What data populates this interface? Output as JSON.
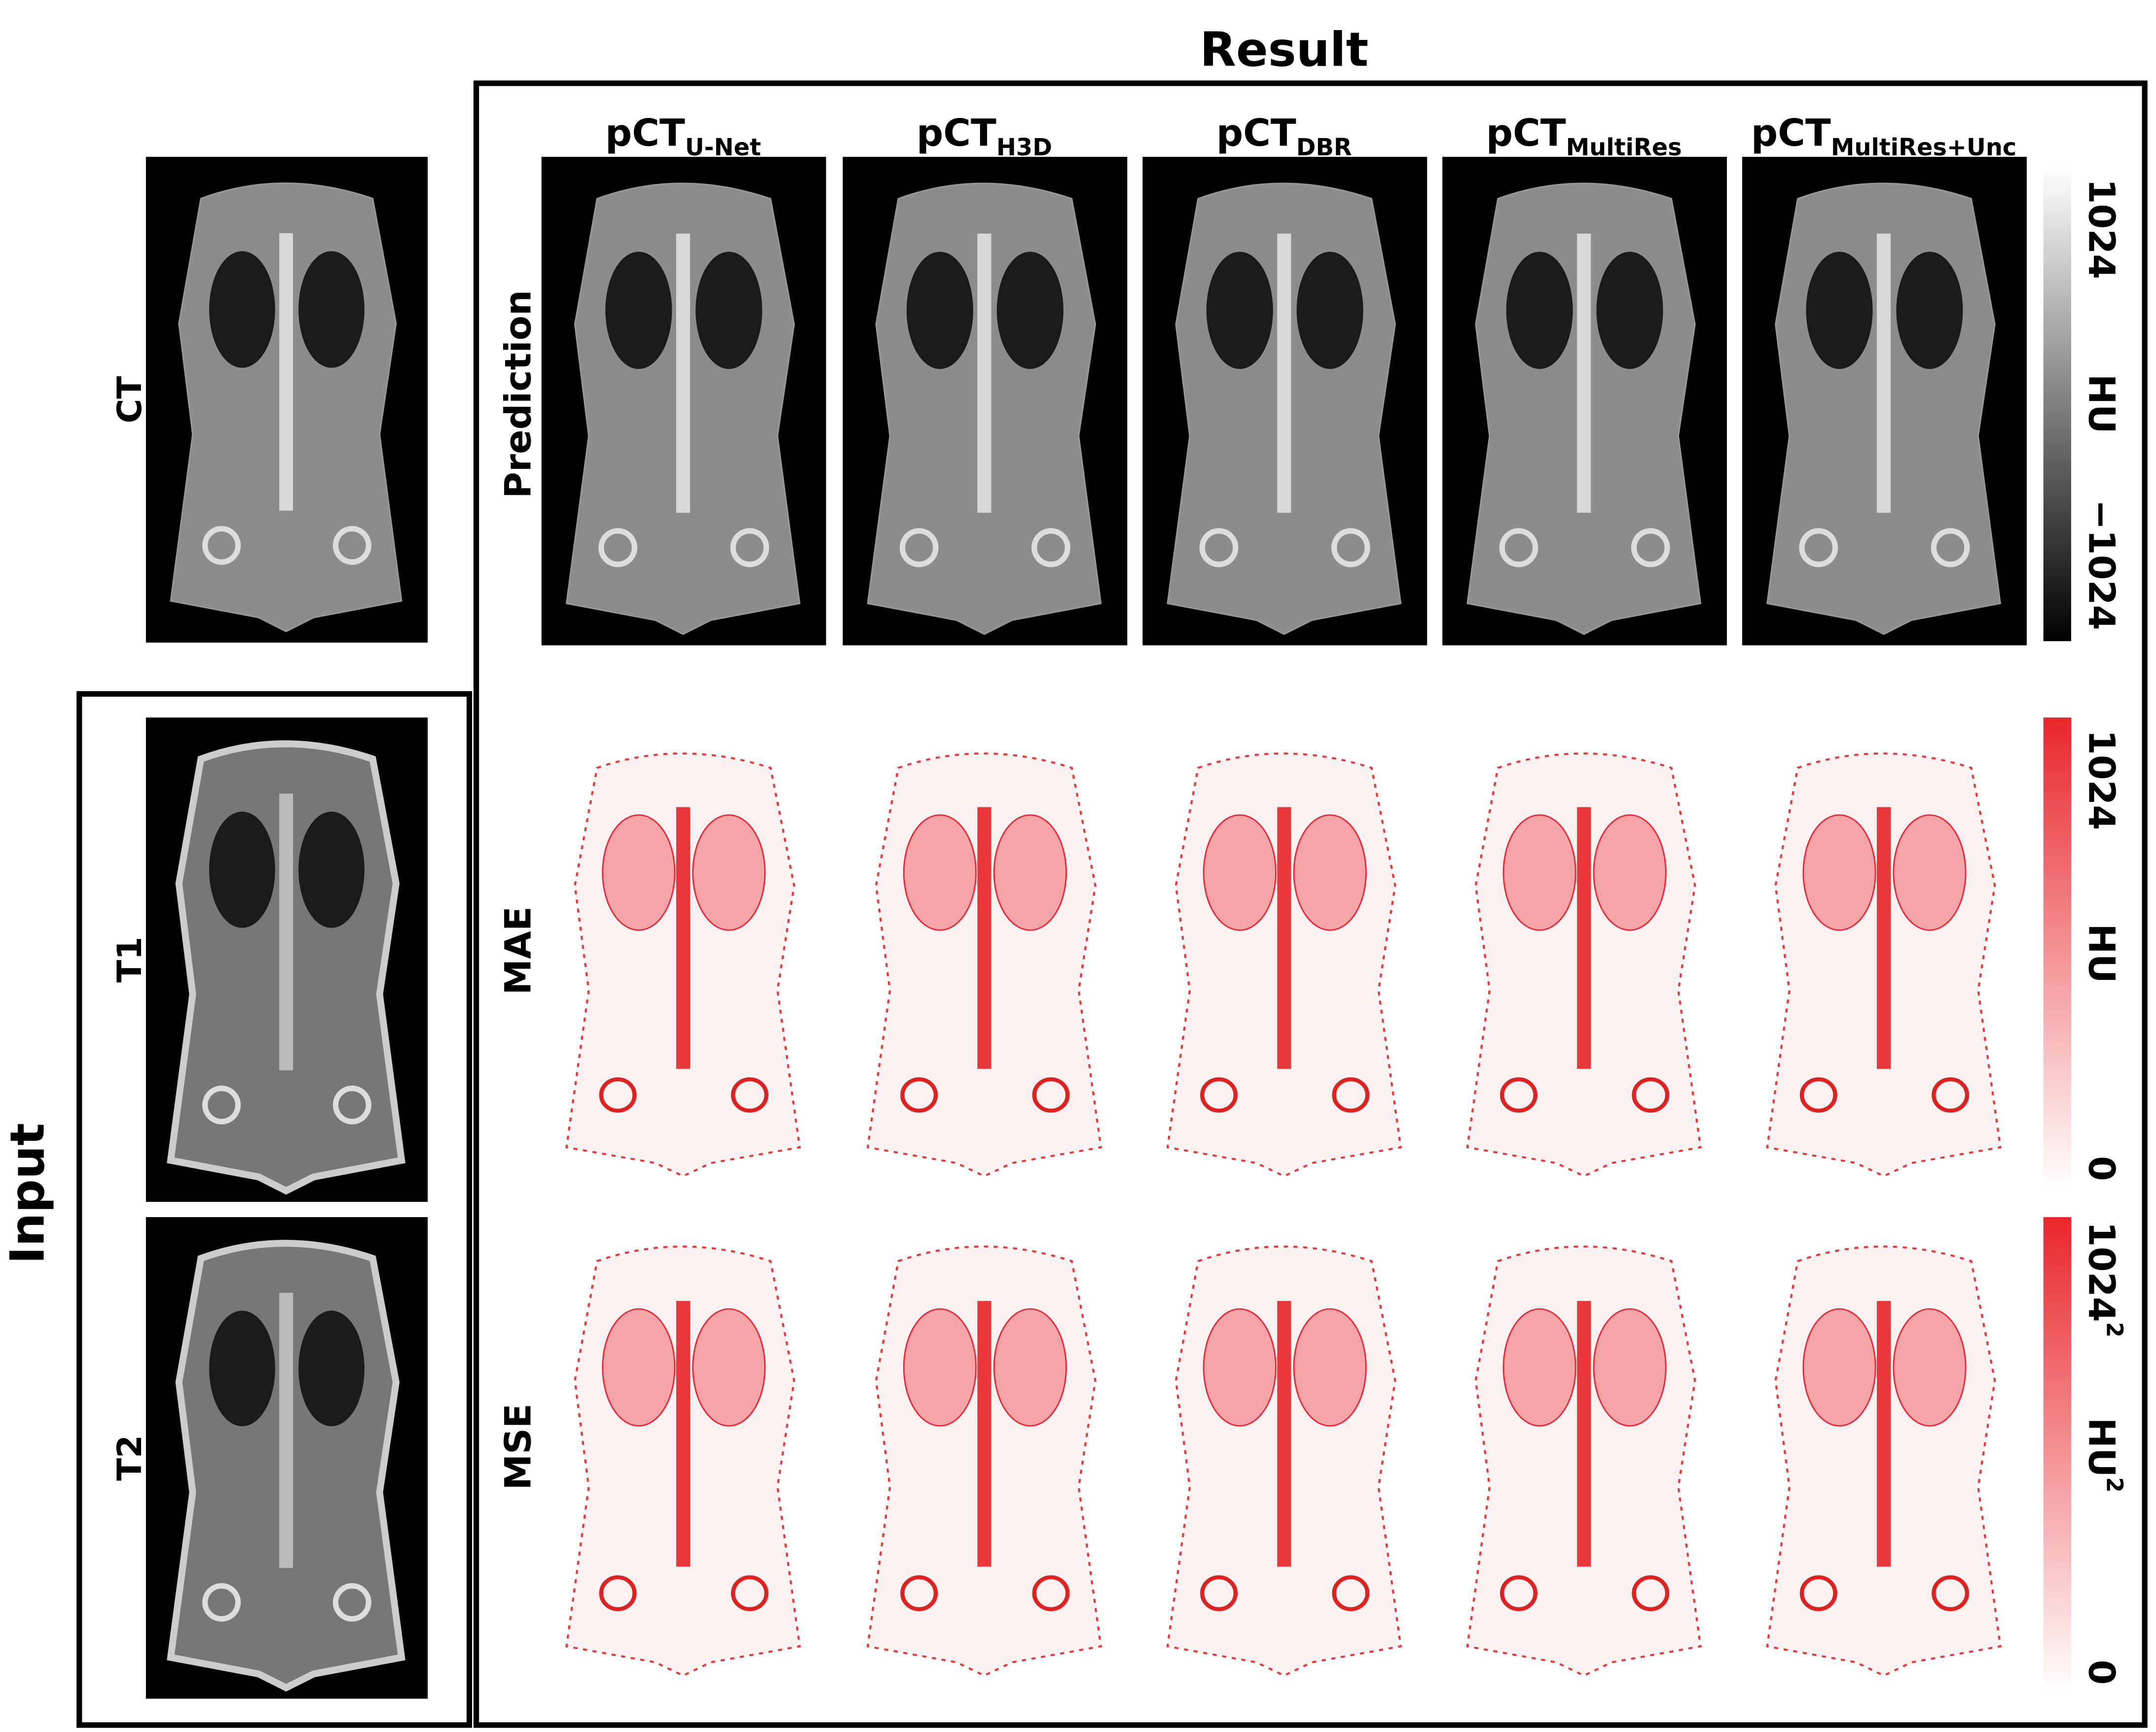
{
  "result_title": "Result",
  "input_title": "Input",
  "input_rows": [
    "CT",
    "T1",
    "T2"
  ],
  "columns": [
    {
      "base": "pCT",
      "sub": "U-Net"
    },
    {
      "base": "pCT",
      "sub": "H3D"
    },
    {
      "base": "pCT",
      "sub": "DBR"
    },
    {
      "base": "pCT",
      "sub": "MultiRes"
    },
    {
      "base": "pCT",
      "sub": "MultiRes+Unc"
    }
  ],
  "rows": [
    "Prediction",
    "MAE",
    "MSE"
  ],
  "colorbars": [
    {
      "top": {
        "base": "1024"
      },
      "mid": {
        "base": "HU"
      },
      "bottom": {
        "base": "−1024"
      }
    },
    {
      "top": {
        "base": "1024"
      },
      "mid": {
        "base": "HU"
      },
      "bottom": {
        "base": "0"
      }
    },
    {
      "top": {
        "base": "1024",
        "sup": "2"
      },
      "mid": {
        "base": "HU",
        "sup": "2"
      },
      "bottom": {
        "base": "0"
      }
    }
  ]
}
